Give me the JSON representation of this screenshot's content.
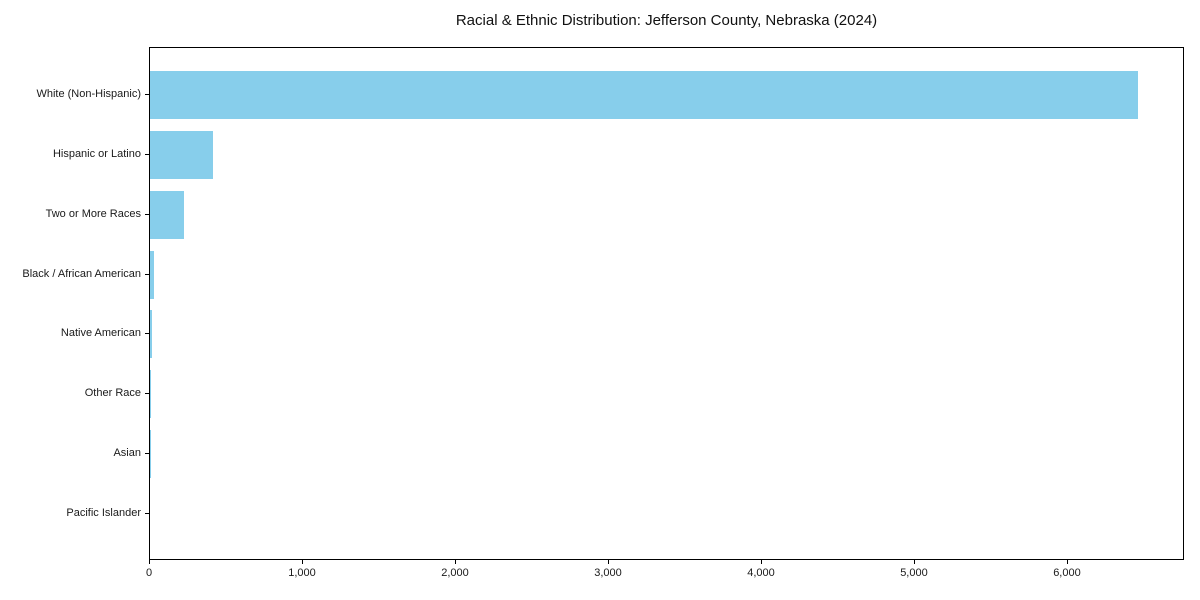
{
  "chart_data": {
    "type": "bar",
    "orientation": "horizontal",
    "title": "Racial & Ethnic Distribution: Jefferson County, Nebraska (2024)",
    "categories": [
      "White (Non-Hispanic)",
      "Hispanic or Latino",
      "Two or More Races",
      "Black / African American",
      "Native American",
      "Other Race",
      "Asian",
      "Pacific Islander"
    ],
    "values": [
      6460,
      415,
      220,
      25,
      15,
      6,
      4,
      0
    ],
    "xlabel": "",
    "ylabel": "",
    "xlim": [
      0,
      6765
    ],
    "x_ticks": [
      0,
      1000,
      2000,
      3000,
      4000,
      5000,
      6000
    ],
    "x_tick_labels": [
      "0",
      "1,000",
      "2,000",
      "3,000",
      "4,000",
      "5,000",
      "6,000"
    ],
    "bar_color": "#87CEEB",
    "spine_color": "#000000",
    "text_color": "#1a1a1a",
    "grid": false,
    "legend": null
  }
}
